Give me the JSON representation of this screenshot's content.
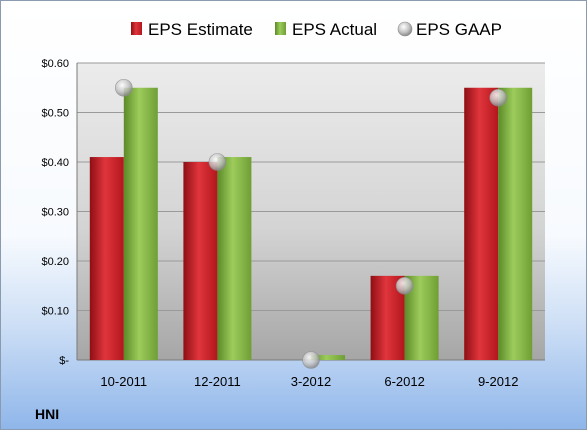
{
  "chart_data": {
    "type": "bar",
    "title": "",
    "xlabel": "",
    "ylabel": "",
    "ticker": "HNI",
    "categories": [
      "10-2011",
      "12-2011",
      "3-2012",
      "6-2012",
      "9-2012"
    ],
    "ylim": [
      0,
      0.6
    ],
    "yticks": [
      0,
      0.1,
      0.2,
      0.3,
      0.4,
      0.5,
      0.6
    ],
    "ytick_labels": [
      "$-",
      "$0.10",
      "$0.20",
      "$0.30",
      "$0.40",
      "$0.50",
      "$0.60"
    ],
    "grid": true,
    "legend_position": "top",
    "series": [
      {
        "name": "EPS Estimate",
        "type": "bar",
        "color": "#d4212a",
        "values": [
          0.41,
          0.4,
          0.0,
          0.17,
          0.55
        ]
      },
      {
        "name": "EPS Actual",
        "type": "bar",
        "color": "#8cbe46",
        "values": [
          0.55,
          0.41,
          0.01,
          0.17,
          0.55
        ]
      },
      {
        "name": "EPS GAAP",
        "type": "scatter",
        "color": "#c8c8c8",
        "values": [
          0.55,
          0.4,
          0.0,
          0.15,
          0.53
        ]
      }
    ]
  }
}
